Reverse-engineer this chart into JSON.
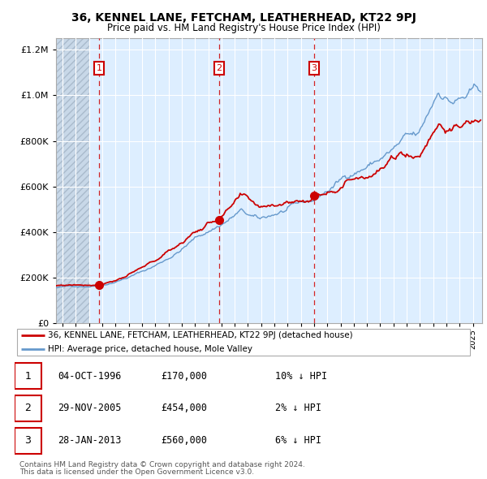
{
  "title": "36, KENNEL LANE, FETCHAM, LEATHERHEAD, KT22 9PJ",
  "subtitle": "Price paid vs. HM Land Registry's House Price Index (HPI)",
  "sale_dates": [
    "1996-10-04",
    "2005-11-29",
    "2013-01-28"
  ],
  "sale_prices": [
    170000,
    454000,
    560000
  ],
  "sale_labels": [
    "1",
    "2",
    "3"
  ],
  "legend_red": "36, KENNEL LANE, FETCHAM, LEATHERHEAD, KT22 9PJ (detached house)",
  "legend_blue": "HPI: Average price, detached house, Mole Valley",
  "footer1": "Contains HM Land Registry data © Crown copyright and database right 2024.",
  "footer2": "This data is licensed under the Open Government Licence v3.0.",
  "table_rows": [
    [
      "1",
      "04-OCT-1996",
      "£170,000",
      "10% ↓ HPI"
    ],
    [
      "2",
      "29-NOV-2005",
      "£454,000",
      "2% ↓ HPI"
    ],
    [
      "3",
      "28-JAN-2013",
      "£560,000",
      "6% ↓ HPI"
    ]
  ],
  "red_color": "#cc0000",
  "blue_color": "#6699cc",
  "bg_color": "#ddeeff",
  "grid_color": "#ffffff",
  "vline_color": "#cc0000",
  "ylim": [
    0,
    1250000
  ],
  "xstart": 1993.5,
  "xend": 2025.7
}
